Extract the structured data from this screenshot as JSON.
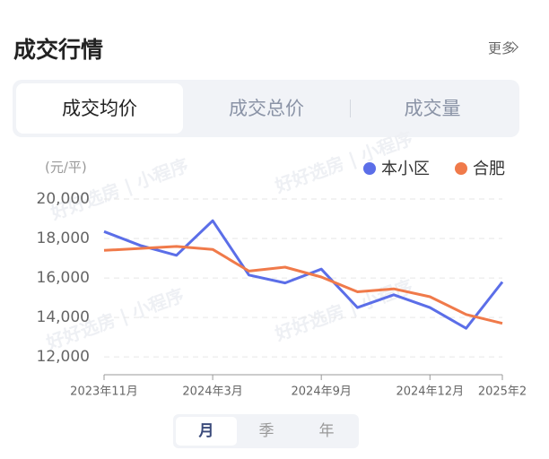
{
  "header": {
    "title": "成交行情",
    "more": "更多"
  },
  "tabs": [
    "成交均价",
    "成交总价",
    "成交量"
  ],
  "watermark": "好好选房 | 小程序",
  "chart_data": {
    "type": "line",
    "unit": "(元/平)",
    "categories": [
      "2023年11月",
      null,
      null,
      "2024年3月",
      null,
      null,
      "2024年9月",
      null,
      null,
      "2024年12月",
      null,
      "2025年2"
    ],
    "series": [
      {
        "name": "本小区",
        "color": "#5b6ee8",
        "values": [
          18350,
          17650,
          17150,
          18900,
          16150,
          15750,
          16450,
          14500,
          15150,
          14500,
          13450,
          15800
        ]
      },
      {
        "name": "合肥",
        "color": "#f07a4a",
        "values": [
          17400,
          17500,
          17600,
          17450,
          16350,
          16550,
          16050,
          15300,
          15450,
          15050,
          14150,
          13700
        ]
      }
    ],
    "ylim": [
      11100,
      20000
    ],
    "yticks": [
      {
        "value": 12000,
        "label": "12,000"
      },
      {
        "value": 14000,
        "label": "14,000"
      },
      {
        "value": 16000,
        "label": "16,000"
      },
      {
        "value": 18000,
        "label": "18,000"
      },
      {
        "value": 20000,
        "label": "20,000"
      }
    ],
    "grid": true,
    "legend": "top-right"
  },
  "period_tabs": [
    "月",
    "季",
    "年"
  ]
}
